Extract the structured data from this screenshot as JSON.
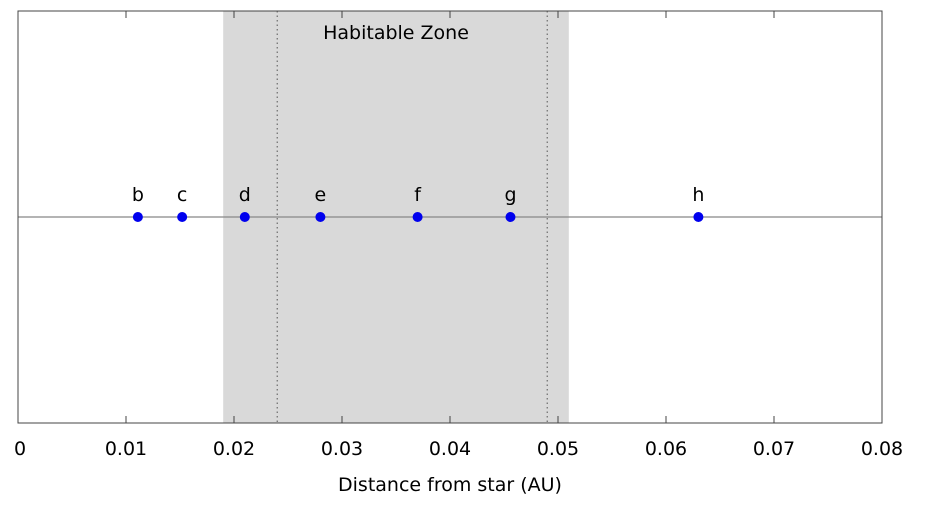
{
  "chart_data": {
    "type": "scatter",
    "title": "",
    "xlabel": "Distance from star (AU)",
    "ylabel": "",
    "xlim": [
      0,
      0.08
    ],
    "x_ticks": [
      0,
      0.01,
      0.02,
      0.03,
      0.04,
      0.05,
      0.06,
      0.07,
      0.08
    ],
    "x_tick_labels": [
      "0",
      "0.01",
      "0.02",
      "0.03",
      "0.04",
      "0.05",
      "0.06",
      "0.07",
      "0.08"
    ],
    "grid": false,
    "series": [
      {
        "color": "#0000ee",
        "points": [
          {
            "label": "b",
            "x": 0.0111
          },
          {
            "label": "c",
            "x": 0.0152
          },
          {
            "label": "d",
            "x": 0.021
          },
          {
            "label": "e",
            "x": 0.028
          },
          {
            "label": "f",
            "x": 0.037
          },
          {
            "label": "g",
            "x": 0.0456
          },
          {
            "label": "h",
            "x": 0.063
          }
        ]
      }
    ],
    "habitable_zone": {
      "label": "Habitable Zone",
      "x_range": [
        0.019,
        0.051
      ],
      "inner_boundaries": [
        0.024,
        0.049
      ],
      "color": "#d9d9d9"
    },
    "baseline_color": "#888888"
  }
}
